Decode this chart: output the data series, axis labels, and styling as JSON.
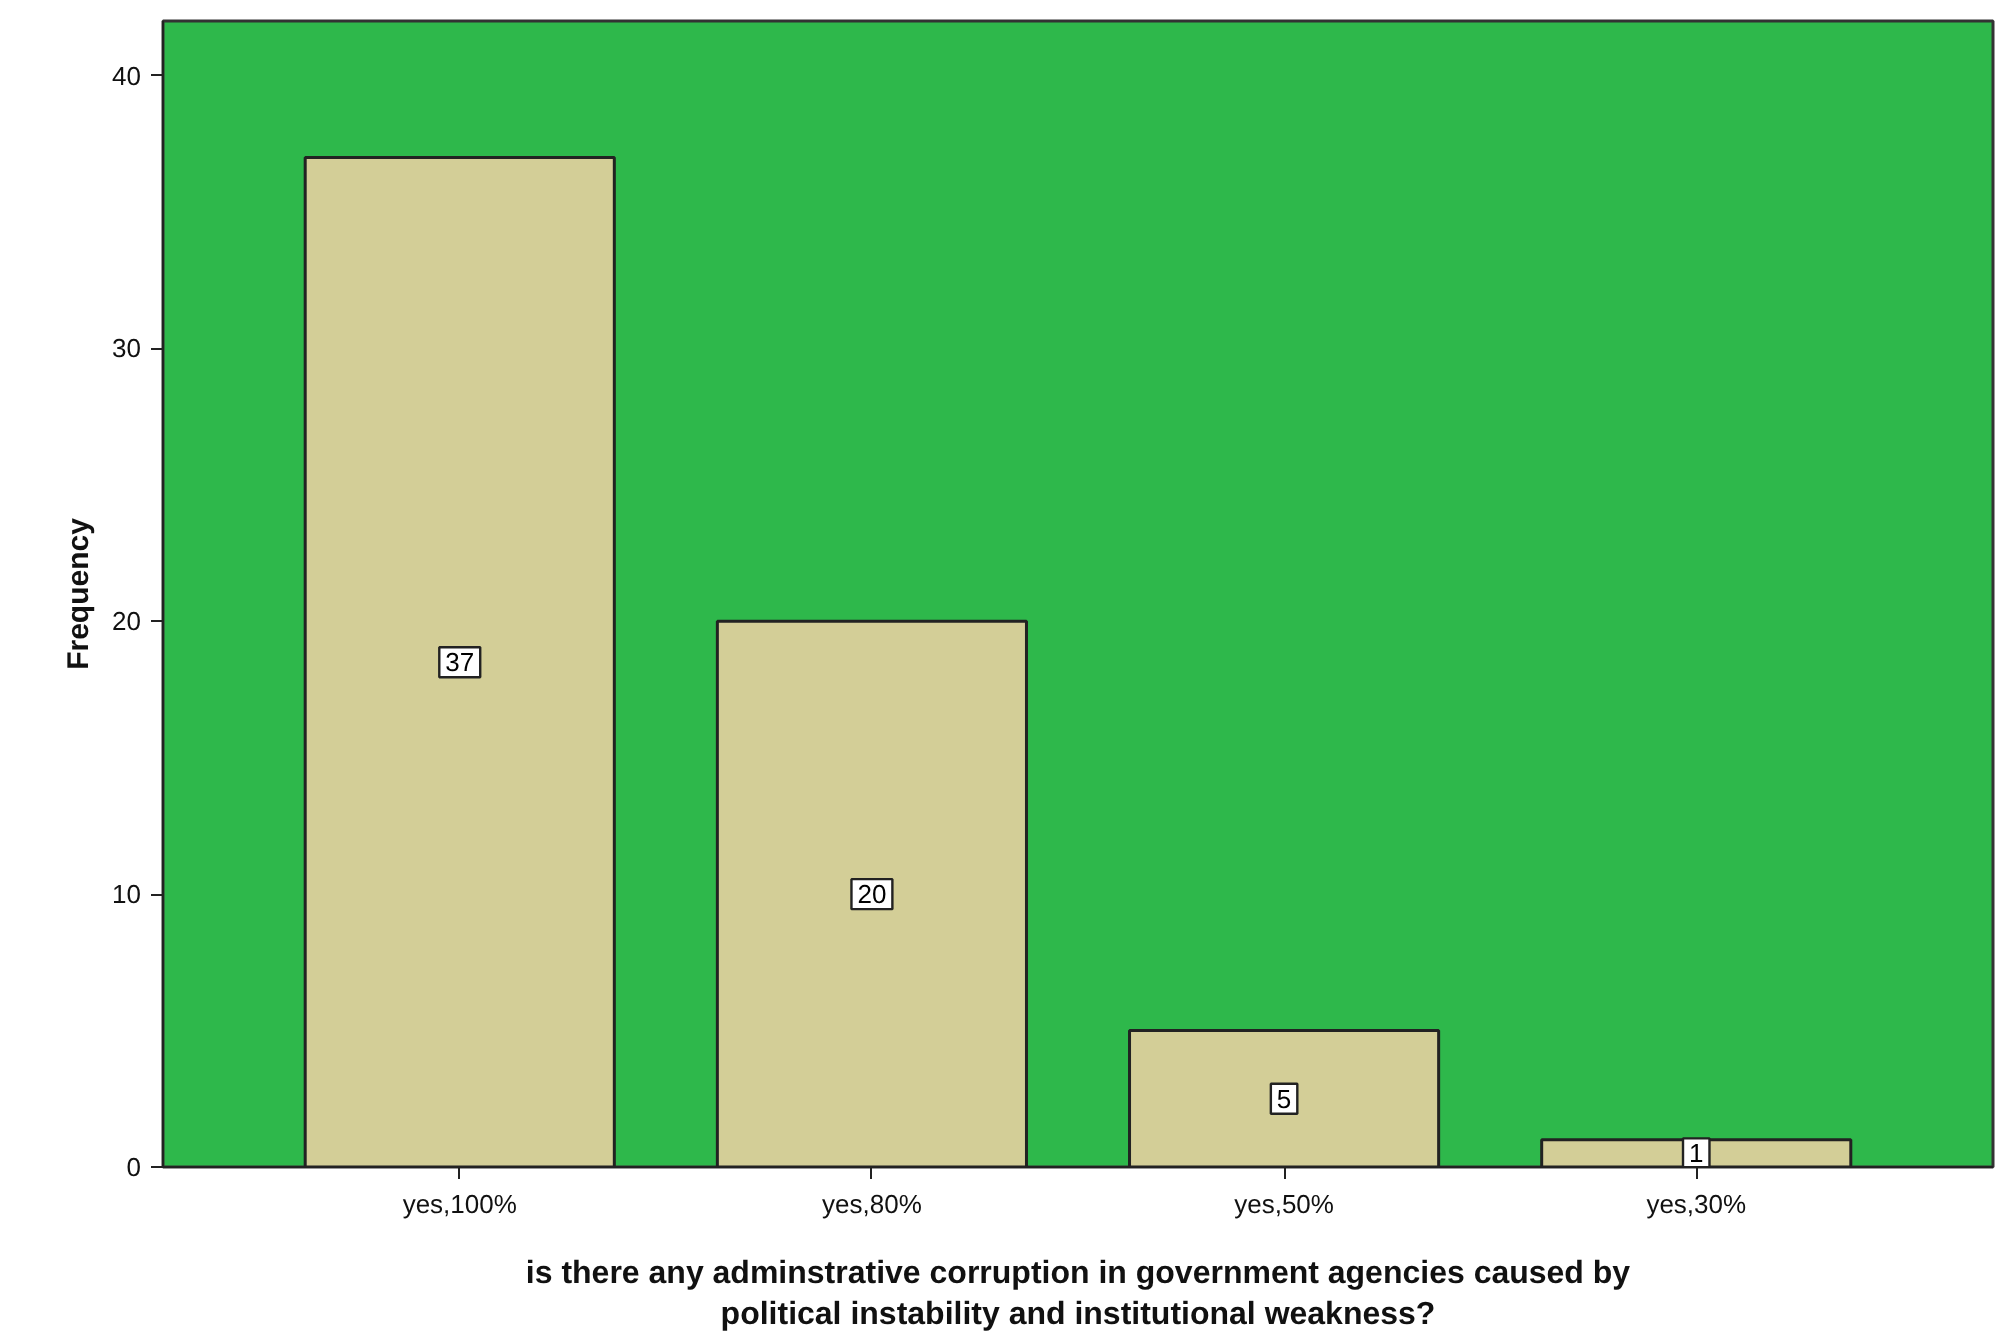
{
  "chart_data": {
    "type": "bar",
    "categories": [
      "yes,100%",
      "yes,80%",
      "yes,50%",
      "yes,30%"
    ],
    "values": [
      37,
      20,
      5,
      1
    ],
    "color": "#d3ce97",
    "xlabel": "is there any adminstrative corruption in government agencies caused by political instability and institutional weakness?",
    "ylabel": "Frequency",
    "ylim": [
      0,
      42
    ],
    "yticks": [
      0,
      10,
      20,
      30,
      40
    ],
    "grid": false,
    "data_labels": true
  }
}
